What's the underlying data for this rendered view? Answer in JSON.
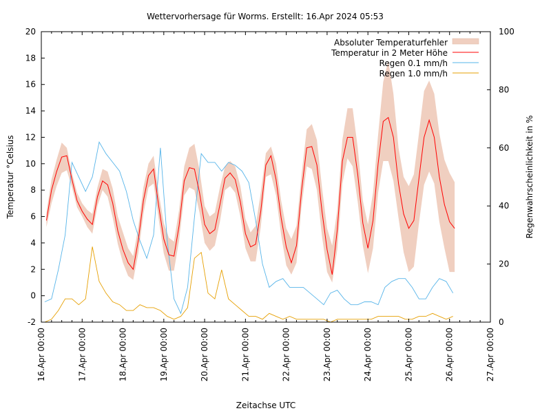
{
  "chart_data": {
    "type": "line",
    "title": "Wettervorhersage für Worms. Erstellt: 16.Apr 2024 05:53",
    "xlabel": "Zeitachse UTC",
    "ylabel": "Temperatur °Celsius",
    "y2label": "Regenwahrscheinlichkeit in %",
    "xlim": [
      "16.Apr 00:00",
      "27.Apr 00:00"
    ],
    "ylim": [
      -2,
      20
    ],
    "y2lim": [
      0,
      100
    ],
    "x_ticks": [
      "16.Apr 00:00",
      "17.Apr 00:00",
      "18.Apr 00:00",
      "19.Apr 00:00",
      "20.Apr 00:00",
      "21.Apr 00:00",
      "22.Apr 00:00",
      "23.Apr 00:00",
      "24.Apr 00:00",
      "25.Apr 00:00",
      "26.Apr 00:00",
      "27.Apr 00:00"
    ],
    "y_ticks": [
      "-2",
      "0",
      "2",
      "4",
      "6",
      "8",
      "10",
      "12",
      "14",
      "16",
      "18",
      "20"
    ],
    "y2_ticks": [
      "0",
      "20",
      "40",
      "60",
      "80",
      "100"
    ],
    "grid": false,
    "legend_position": "top-right",
    "colors": {
      "band": "#f0cfc0",
      "temperature": "#ff0000",
      "rain01": "#56b4e9",
      "rain10": "#e69f00"
    },
    "band": {
      "name": "Absoluter Temperaturfehler",
      "x": [
        "16.Apr 03:00",
        "16.Apr 06:00",
        "16.Apr 09:00",
        "16.Apr 12:00",
        "16.Apr 15:00",
        "16.Apr 18:00",
        "16.Apr 21:00",
        "17.Apr 00:00",
        "17.Apr 03:00",
        "17.Apr 06:00",
        "17.Apr 09:00",
        "17.Apr 12:00",
        "17.Apr 15:00",
        "17.Apr 18:00",
        "17.Apr 21:00",
        "18.Apr 00:00",
        "18.Apr 03:00",
        "18.Apr 06:00",
        "18.Apr 09:00",
        "18.Apr 12:00",
        "18.Apr 15:00",
        "18.Apr 18:00",
        "18.Apr 21:00",
        "19.Apr 00:00",
        "19.Apr 03:00",
        "19.Apr 06:00",
        "19.Apr 09:00",
        "19.Apr 12:00",
        "19.Apr 15:00",
        "19.Apr 18:00",
        "19.Apr 21:00",
        "20.Apr 00:00",
        "20.Apr 03:00",
        "20.Apr 06:00",
        "20.Apr 09:00",
        "20.Apr 12:00",
        "20.Apr 15:00",
        "20.Apr 18:00",
        "20.Apr 21:00",
        "21.Apr 00:00",
        "21.Apr 03:00",
        "21.Apr 06:00",
        "21.Apr 09:00",
        "21.Apr 12:00",
        "21.Apr 15:00",
        "21.Apr 18:00",
        "21.Apr 21:00",
        "22.Apr 00:00",
        "22.Apr 03:00",
        "22.Apr 06:00",
        "22.Apr 09:00",
        "22.Apr 12:00",
        "22.Apr 15:00",
        "22.Apr 18:00",
        "22.Apr 21:00",
        "23.Apr 00:00",
        "23.Apr 03:00",
        "23.Apr 06:00",
        "23.Apr 09:00",
        "23.Apr 12:00",
        "23.Apr 15:00",
        "23.Apr 18:00",
        "23.Apr 21:00",
        "24.Apr 00:00",
        "24.Apr 03:00",
        "24.Apr 06:00",
        "24.Apr 09:00",
        "24.Apr 12:00",
        "24.Apr 15:00",
        "24.Apr 18:00",
        "24.Apr 21:00",
        "25.Apr 00:00",
        "25.Apr 03:00",
        "25.Apr 06:00",
        "25.Apr 09:00",
        "25.Apr 12:00",
        "25.Apr 15:00",
        "25.Apr 18:00",
        "25.Apr 21:00",
        "26.Apr 00:00",
        "26.Apr 03:00"
      ],
      "upper": [
        6.3,
        8.8,
        10.3,
        11.6,
        11.2,
        9.3,
        7.8,
        7.0,
        6.5,
        6.2,
        8.2,
        9.6,
        9.4,
        8.1,
        6.0,
        4.8,
        3.6,
        3.0,
        5.2,
        8.2,
        10.0,
        10.6,
        7.8,
        5.5,
        4.4,
        4.1,
        6.5,
        9.8,
        11.2,
        11.5,
        9.5,
        6.8,
        6.0,
        6.3,
        8.2,
        9.8,
        10.2,
        9.8,
        8.3,
        5.8,
        4.8,
        5.3,
        7.8,
        10.8,
        11.3,
        10.0,
        7.2,
        5.1,
        4.3,
        5.3,
        9.2,
        12.6,
        13.0,
        11.8,
        8.2,
        5.1,
        3.8,
        6.5,
        11.8,
        14.2,
        14.2,
        11.2,
        7.2,
        5.4,
        7.8,
        12.2,
        16.2,
        17.8,
        15.3,
        11.2,
        9.0,
        8.3,
        9.2,
        12.3,
        15.5,
        16.3,
        15.3,
        12.3,
        10.3,
        9.3,
        8.6
      ],
      "lower": [
        5.2,
        7.0,
        8.3,
        9.3,
        9.5,
        8.2,
        6.7,
        6.0,
        5.2,
        4.7,
        6.8,
        8.0,
        7.5,
        5.9,
        3.9,
        2.5,
        1.5,
        1.2,
        3.2,
        6.2,
        8.2,
        8.5,
        5.8,
        3.2,
        1.9,
        1.9,
        4.2,
        7.6,
        8.2,
        8.0,
        6.3,
        4.0,
        3.4,
        3.8,
        5.6,
        8.0,
        8.3,
        7.8,
        6.0,
        3.6,
        2.6,
        2.6,
        5.2,
        9.0,
        9.2,
        7.6,
        4.6,
        2.3,
        1.6,
        2.5,
        6.8,
        9.8,
        9.6,
        8.0,
        4.5,
        1.8,
        1.0,
        3.5,
        8.5,
        10.4,
        9.8,
        7.1,
        3.8,
        1.7,
        3.6,
        7.8,
        10.2,
        10.2,
        8.7,
        5.9,
        3.3,
        1.8,
        2.2,
        5.5,
        8.4,
        9.4,
        8.5,
        5.6,
        3.6,
        1.8,
        1.8
      ]
    },
    "series": [
      {
        "name": "Temperatur in 2 Meter Höhe",
        "x": [
          "16.Apr 03:00",
          "16.Apr 06:00",
          "16.Apr 09:00",
          "16.Apr 12:00",
          "16.Apr 15:00",
          "16.Apr 18:00",
          "16.Apr 21:00",
          "17.Apr 00:00",
          "17.Apr 03:00",
          "17.Apr 06:00",
          "17.Apr 09:00",
          "17.Apr 12:00",
          "17.Apr 15:00",
          "17.Apr 18:00",
          "17.Apr 21:00",
          "18.Apr 00:00",
          "18.Apr 03:00",
          "18.Apr 06:00",
          "18.Apr 09:00",
          "18.Apr 12:00",
          "18.Apr 15:00",
          "18.Apr 18:00",
          "18.Apr 21:00",
          "19.Apr 00:00",
          "19.Apr 03:00",
          "19.Apr 06:00",
          "19.Apr 09:00",
          "19.Apr 12:00",
          "19.Apr 15:00",
          "19.Apr 18:00",
          "19.Apr 21:00",
          "20.Apr 00:00",
          "20.Apr 03:00",
          "20.Apr 06:00",
          "20.Apr 09:00",
          "20.Apr 12:00",
          "20.Apr 15:00",
          "20.Apr 18:00",
          "20.Apr 21:00",
          "21.Apr 00:00",
          "21.Apr 03:00",
          "21.Apr 06:00",
          "21.Apr 09:00",
          "21.Apr 12:00",
          "21.Apr 15:00",
          "21.Apr 18:00",
          "21.Apr 21:00",
          "22.Apr 00:00",
          "22.Apr 03:00",
          "22.Apr 06:00",
          "22.Apr 09:00",
          "22.Apr 12:00",
          "22.Apr 15:00",
          "22.Apr 18:00",
          "22.Apr 21:00",
          "23.Apr 00:00",
          "23.Apr 03:00",
          "23.Apr 06:00",
          "23.Apr 09:00",
          "23.Apr 12:00",
          "23.Apr 15:00",
          "23.Apr 18:00",
          "23.Apr 21:00",
          "24.Apr 00:00",
          "24.Apr 03:00",
          "24.Apr 06:00",
          "24.Apr 09:00",
          "24.Apr 12:00",
          "24.Apr 15:00",
          "24.Apr 18:00",
          "24.Apr 21:00",
          "25.Apr 00:00",
          "25.Apr 03:00",
          "25.Apr 06:00",
          "25.Apr 09:00",
          "25.Apr 12:00",
          "25.Apr 15:00",
          "25.Apr 18:00",
          "25.Apr 21:00",
          "26.Apr 00:00",
          "26.Apr 03:00"
        ],
        "values": [
          5.7,
          8.0,
          9.4,
          10.5,
          10.6,
          8.8,
          7.2,
          6.4,
          5.8,
          5.4,
          7.5,
          8.7,
          8.4,
          7.0,
          4.9,
          3.5,
          2.5,
          2.0,
          4.2,
          7.2,
          9.1,
          9.6,
          6.8,
          4.3,
          3.1,
          3.0,
          5.3,
          8.7,
          9.7,
          9.6,
          7.8,
          5.4,
          4.7,
          5.0,
          6.9,
          8.9,
          9.3,
          8.8,
          7.1,
          4.7,
          3.7,
          3.9,
          6.4,
          9.9,
          10.6,
          8.8,
          5.9,
          3.7,
          2.5,
          3.8,
          8.0,
          11.2,
          11.3,
          9.9,
          6.4,
          3.5,
          1.6,
          5.0,
          10.2,
          12.0,
          12.0,
          9.2,
          5.5,
          3.6,
          5.7,
          10.0,
          13.2,
          13.5,
          12.0,
          8.5,
          6.2,
          5.1,
          5.7,
          8.9,
          12.0,
          13.3,
          12.0,
          9.0,
          6.9,
          5.6,
          5.1
        ]
      },
      {
        "name": "Regen 0.1 mm/h",
        "axis": "right",
        "x": [
          "16.Apr 02:00",
          "16.Apr 06:00",
          "16.Apr 10:00",
          "16.Apr 14:00",
          "16.Apr 18:00",
          "16.Apr 22:00",
          "17.Apr 02:00",
          "17.Apr 06:00",
          "17.Apr 10:00",
          "17.Apr 14:00",
          "17.Apr 18:00",
          "17.Apr 22:00",
          "18.Apr 02:00",
          "18.Apr 06:00",
          "18.Apr 10:00",
          "18.Apr 14:00",
          "18.Apr 18:00",
          "18.Apr 22:00",
          "19.Apr 02:00",
          "19.Apr 06:00",
          "19.Apr 10:00",
          "19.Apr 14:00",
          "19.Apr 18:00",
          "19.Apr 22:00",
          "20.Apr 02:00",
          "20.Apr 06:00",
          "20.Apr 10:00",
          "20.Apr 14:00",
          "20.Apr 18:00",
          "20.Apr 22:00",
          "21.Apr 02:00",
          "21.Apr 06:00",
          "21.Apr 10:00",
          "21.Apr 14:00",
          "21.Apr 18:00",
          "21.Apr 22:00",
          "22.Apr 02:00",
          "22.Apr 06:00",
          "22.Apr 10:00",
          "22.Apr 14:00",
          "22.Apr 18:00",
          "22.Apr 22:00",
          "23.Apr 02:00",
          "23.Apr 06:00",
          "23.Apr 10:00",
          "23.Apr 14:00",
          "23.Apr 18:00",
          "23.Apr 22:00",
          "24.Apr 02:00",
          "24.Apr 06:00",
          "24.Apr 10:00",
          "24.Apr 14:00",
          "24.Apr 18:00",
          "24.Apr 22:00",
          "25.Apr 02:00",
          "25.Apr 06:00",
          "25.Apr 10:00",
          "25.Apr 14:00",
          "25.Apr 18:00",
          "25.Apr 22:00",
          "26.Apr 02:00"
        ],
        "values": [
          7,
          8,
          18,
          30,
          55,
          50,
          45,
          50,
          62,
          58,
          55,
          52,
          45,
          35,
          28,
          22,
          30,
          60,
          28,
          8,
          3,
          12,
          36,
          58,
          55,
          55,
          52,
          55,
          54,
          52,
          48,
          35,
          20,
          12,
          14,
          15,
          12,
          12,
          12,
          10,
          8,
          6,
          10,
          11,
          8,
          6,
          6,
          7,
          7,
          6,
          12,
          14,
          15,
          15,
          12,
          8,
          8,
          12,
          15,
          14,
          10
        ],
        "raw_note": ""
      },
      {
        "name": "Regen 1.0 mm/h",
        "axis": "right",
        "x": [
          "16.Apr 02:00",
          "16.Apr 06:00",
          "16.Apr 10:00",
          "16.Apr 14:00",
          "16.Apr 18:00",
          "16.Apr 22:00",
          "17.Apr 02:00",
          "17.Apr 06:00",
          "17.Apr 10:00",
          "17.Apr 14:00",
          "17.Apr 18:00",
          "17.Apr 22:00",
          "18.Apr 02:00",
          "18.Apr 06:00",
          "18.Apr 10:00",
          "18.Apr 14:00",
          "18.Apr 18:00",
          "18.Apr 22:00",
          "19.Apr 02:00",
          "19.Apr 06:00",
          "19.Apr 10:00",
          "19.Apr 14:00",
          "19.Apr 18:00",
          "19.Apr 22:00",
          "20.Apr 02:00",
          "20.Apr 06:00",
          "20.Apr 10:00",
          "20.Apr 14:00",
          "20.Apr 18:00",
          "20.Apr 22:00",
          "21.Apr 02:00",
          "21.Apr 06:00",
          "21.Apr 10:00",
          "21.Apr 14:00",
          "21.Apr 18:00",
          "21.Apr 22:00",
          "22.Apr 02:00",
          "22.Apr 06:00",
          "22.Apr 10:00",
          "22.Apr 14:00",
          "22.Apr 18:00",
          "22.Apr 22:00",
          "23.Apr 02:00",
          "23.Apr 06:00",
          "23.Apr 10:00",
          "23.Apr 14:00",
          "23.Apr 18:00",
          "23.Apr 22:00",
          "24.Apr 02:00",
          "24.Apr 06:00",
          "24.Apr 10:00",
          "24.Apr 14:00",
          "24.Apr 18:00",
          "24.Apr 22:00",
          "25.Apr 02:00",
          "25.Apr 06:00",
          "25.Apr 10:00",
          "25.Apr 14:00",
          "25.Apr 18:00",
          "25.Apr 22:00",
          "26.Apr 02:00"
        ],
        "values": [
          0,
          1,
          4,
          8,
          8,
          6,
          8,
          26,
          14,
          10,
          7,
          6,
          4,
          4,
          6,
          5,
          5,
          4,
          2,
          1,
          2,
          5,
          22,
          24,
          10,
          8,
          18,
          8,
          6,
          4,
          2,
          2,
          1,
          3,
          2,
          1,
          2,
          1,
          1,
          1,
          1,
          1,
          0,
          1,
          1,
          1,
          1,
          1,
          1,
          2,
          2,
          2,
          2,
          1,
          1,
          2,
          2,
          3,
          2,
          1,
          2
        ]
      }
    ]
  }
}
